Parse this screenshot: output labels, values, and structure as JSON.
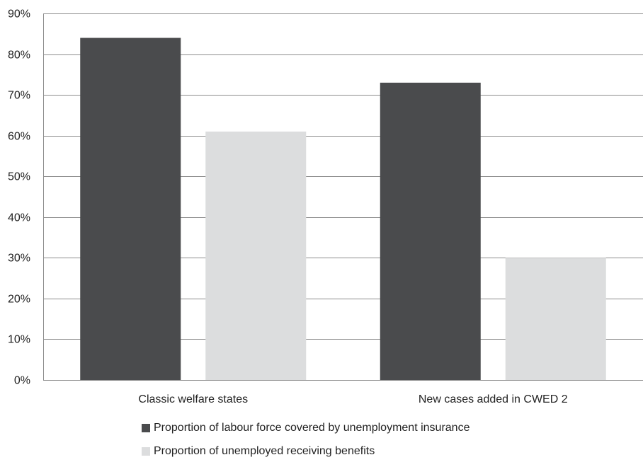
{
  "chart_data": {
    "type": "bar",
    "categories": [
      "Classic welfare states",
      "New cases added in CWED 2"
    ],
    "series": [
      {
        "name": "Proportion of labour force covered by unemployment insurance",
        "values": [
          84,
          73
        ],
        "color": "#4a4b4d"
      },
      {
        "name": "Proportion of unemployed receiving benefits",
        "values": [
          61,
          30
        ],
        "color": "#dcddde"
      }
    ],
    "ylim": [
      0,
      90
    ],
    "yticks": [
      "0%",
      "10%",
      "20%",
      "30%",
      "40%",
      "50%",
      "60%",
      "70%",
      "80%",
      "90%"
    ],
    "ytick_values": [
      0,
      10,
      20,
      30,
      40,
      50,
      60,
      70,
      80,
      90
    ],
    "grid": true,
    "gridline_color": "#8c8c8c",
    "legend_position": "bottom"
  }
}
